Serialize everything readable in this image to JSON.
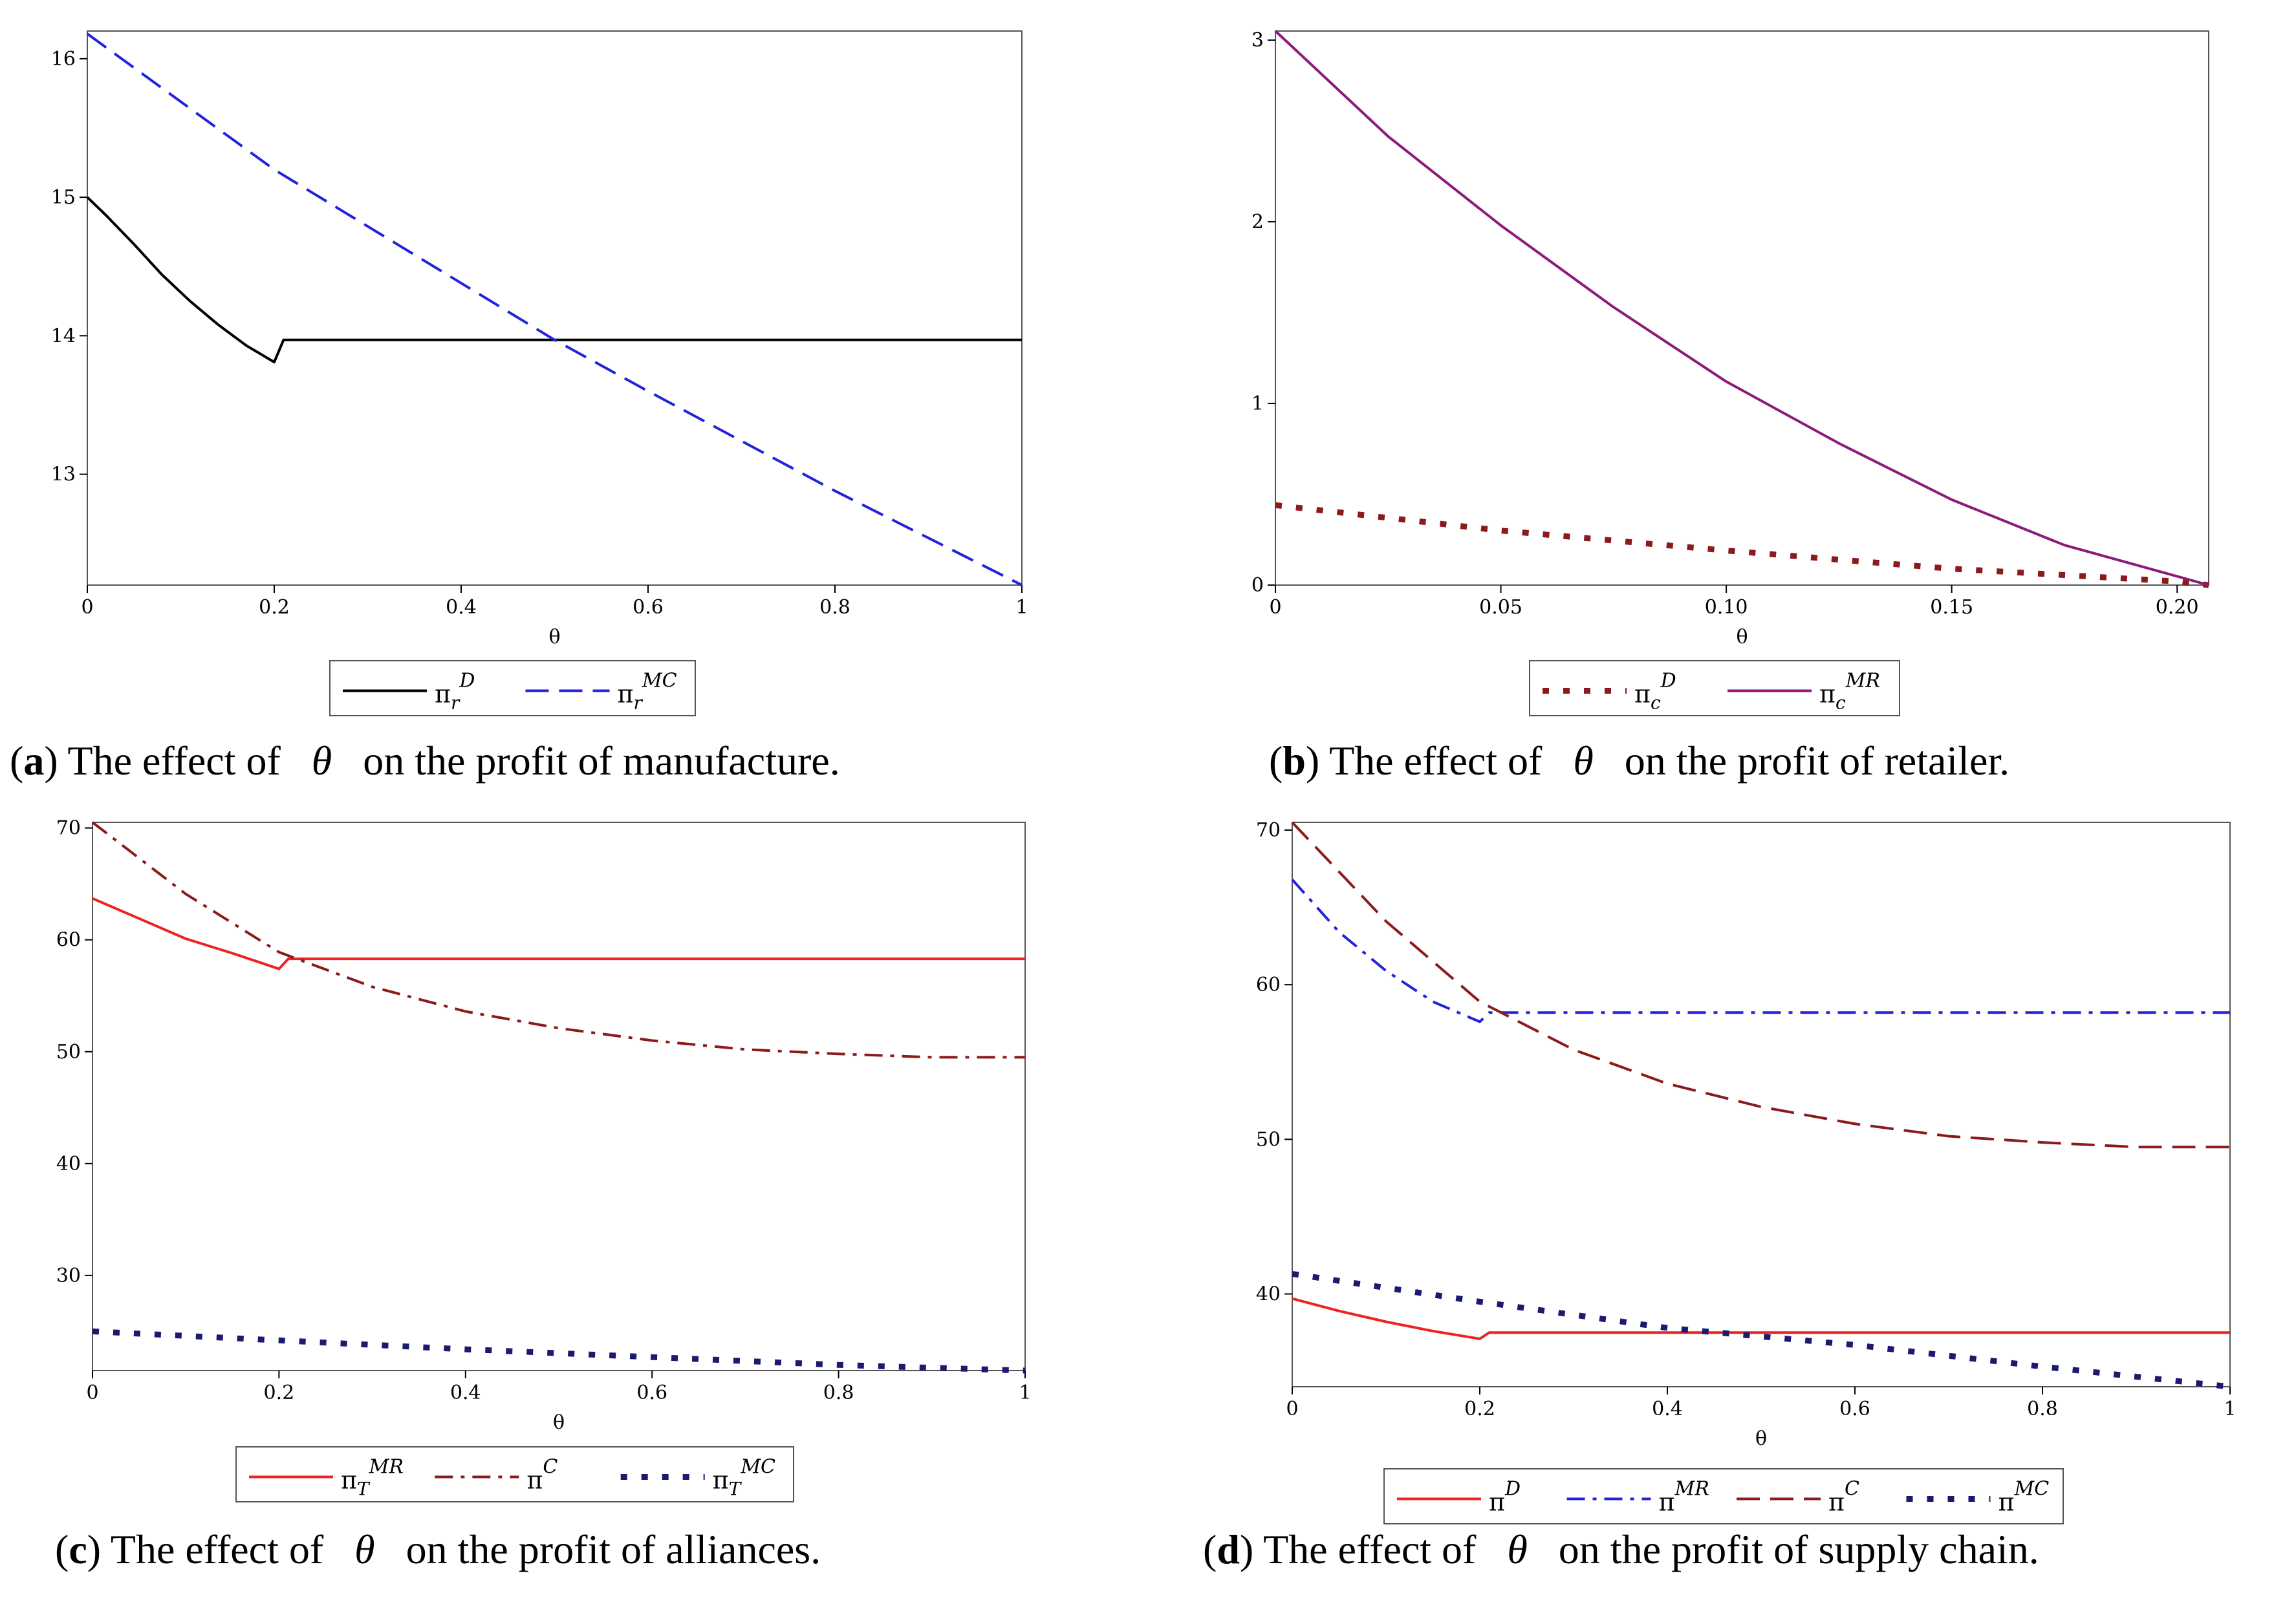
{
  "chart_data": [
    {
      "type": "line",
      "xlabel": "θ",
      "ylabel": "",
      "xlim": [
        0,
        1
      ],
      "ylim": [
        12.2,
        16.2
      ],
      "xticks": [
        0,
        0.2,
        0.4,
        0.6,
        0.8,
        1
      ],
      "xtick_labels": [
        "0",
        "0.2",
        "0.4",
        "0.6",
        "0.8",
        "1"
      ],
      "yticks": [
        13,
        14,
        15,
        16
      ],
      "ytick_labels": [
        "13",
        "14",
        "15",
        "16"
      ],
      "grid": false,
      "legend": "bottom",
      "series": [
        {
          "name": "π_r^D",
          "base": "π",
          "sub": "r",
          "sup": "D",
          "color": "#000000",
          "style": "solid",
          "x": [
            0,
            0.02,
            0.05,
            0.08,
            0.11,
            0.14,
            0.17,
            0.2,
            0.2,
            0.21,
            0.4,
            0.6,
            0.8,
            1
          ],
          "y": [
            15.0,
            14.87,
            14.66,
            14.44,
            14.25,
            14.08,
            13.93,
            13.81,
            13.81,
            13.97,
            13.97,
            13.97,
            13.97,
            13.97
          ]
        },
        {
          "name": "π_r^MC",
          "base": "π",
          "sub": "r",
          "sup": "MC",
          "color": "#2222dd",
          "style": "dashed",
          "x": [
            0,
            0.2,
            0.4,
            0.5,
            0.6,
            0.8,
            1
          ],
          "y": [
            16.18,
            15.2,
            14.38,
            13.97,
            13.6,
            12.88,
            12.2
          ]
        }
      ],
      "caption": {
        "letter": "a",
        "before": "The effect of",
        "symbol": "θ",
        "after": "on the profit of manufacture."
      }
    },
    {
      "type": "line",
      "xlabel": "θ",
      "ylabel": "",
      "xlim": [
        0,
        0.207
      ],
      "ylim": [
        0,
        3.05
      ],
      "xticks": [
        0,
        0.05,
        0.1,
        0.15,
        0.2
      ],
      "xtick_labels": [
        "0",
        "0.05",
        "0.10",
        "0.15",
        "0.20"
      ],
      "yticks": [
        0,
        1,
        2,
        3
      ],
      "ytick_labels": [
        "0",
        "1",
        "2",
        "3"
      ],
      "grid": false,
      "legend": "bottom",
      "series": [
        {
          "name": "π_c^D",
          "base": "π",
          "sub": "c",
          "sup": "D",
          "color": "#8b1a1a",
          "style": "dotted",
          "x": [
            0,
            0.05,
            0.1,
            0.15,
            0.2,
            0.207
          ],
          "y": [
            0.44,
            0.3,
            0.19,
            0.09,
            0.02,
            0.0
          ]
        },
        {
          "name": "π_c^MR",
          "base": "π",
          "sub": "c",
          "sup": "MR",
          "color": "#8b1a7a",
          "style": "solid",
          "x": [
            0,
            0.025,
            0.05,
            0.075,
            0.1,
            0.125,
            0.15,
            0.175,
            0.207
          ],
          "y": [
            3.05,
            2.47,
            1.98,
            1.53,
            1.12,
            0.78,
            0.47,
            0.22,
            0.0
          ]
        }
      ],
      "caption": {
        "letter": "b",
        "before": "The effect of",
        "symbol": "θ",
        "after": "on the profit of retailer."
      }
    },
    {
      "type": "line",
      "xlabel": "θ",
      "ylabel": "",
      "xlim": [
        0,
        1
      ],
      "ylim": [
        21.5,
        70.5
      ],
      "xticks": [
        0,
        0.2,
        0.4,
        0.6,
        0.8,
        1
      ],
      "xtick_labels": [
        "0",
        "0.2",
        "0.4",
        "0.6",
        "0.8",
        "1"
      ],
      "yticks": [
        30,
        40,
        50,
        60,
        70
      ],
      "ytick_labels": [
        "30",
        "40",
        "50",
        "60",
        "70"
      ],
      "grid": false,
      "legend": "bottom",
      "series": [
        {
          "name": "π_T^MR",
          "base": "π",
          "sub": "T",
          "sup": "MR",
          "color": "#ee2222",
          "style": "solid",
          "x": [
            0,
            0.05,
            0.1,
            0.15,
            0.2,
            0.2,
            0.21,
            0.4,
            0.6,
            0.8,
            1
          ],
          "y": [
            63.7,
            61.9,
            60.1,
            58.8,
            57.4,
            57.4,
            58.3,
            58.3,
            58.3,
            58.3,
            58.3
          ]
        },
        {
          "name": "π^C",
          "base": "π",
          "sub": "",
          "sup": "C",
          "color": "#8b1a1a",
          "style": "dashdot",
          "x": [
            0,
            0.1,
            0.2,
            0.3,
            0.4,
            0.5,
            0.6,
            0.7,
            0.8,
            0.9,
            1
          ],
          "y": [
            70.5,
            64.1,
            58.9,
            55.8,
            53.6,
            52.1,
            51.0,
            50.2,
            49.8,
            49.5,
            49.5
          ]
        },
        {
          "name": "π_T^MC",
          "base": "π",
          "sub": "T",
          "sup": "MC",
          "color": "#1a1a6e",
          "style": "dotted",
          "x": [
            0,
            0.2,
            0.4,
            0.6,
            0.8,
            1
          ],
          "y": [
            25.0,
            24.2,
            23.4,
            22.7,
            22.0,
            21.5
          ]
        }
      ],
      "caption": {
        "letter": "c",
        "before": "The effect of",
        "symbol": "θ",
        "after": "on the profit of alliances."
      }
    },
    {
      "type": "line",
      "xlabel": "θ",
      "ylabel": "",
      "xlim": [
        0,
        1
      ],
      "ylim": [
        34,
        70.5
      ],
      "xticks": [
        0,
        0.2,
        0.4,
        0.6,
        0.8,
        1
      ],
      "xtick_labels": [
        "0",
        "0.2",
        "0.4",
        "0.6",
        "0.8",
        "1"
      ],
      "yticks": [
        40,
        50,
        60,
        70
      ],
      "ytick_labels": [
        "40",
        "50",
        "60",
        "70"
      ],
      "grid": false,
      "legend": "bottom",
      "series": [
        {
          "name": "π^D",
          "base": "π",
          "sub": "",
          "sup": "D",
          "color": "#ee2222",
          "style": "solid",
          "x": [
            0,
            0.05,
            0.1,
            0.15,
            0.2,
            0.2,
            0.21,
            0.4,
            0.6,
            0.8,
            1
          ],
          "y": [
            39.7,
            38.9,
            38.2,
            37.6,
            37.1,
            37.1,
            37.5,
            37.5,
            37.5,
            37.5,
            37.5
          ]
        },
        {
          "name": "π^MR",
          "base": "π",
          "sub": "",
          "sup": "MR",
          "color": "#2222dd",
          "style": "dashdot",
          "x": [
            0,
            0.05,
            0.1,
            0.15,
            0.2,
            0.2,
            0.21,
            0.4,
            0.6,
            0.8,
            1
          ],
          "y": [
            66.8,
            63.4,
            60.9,
            58.9,
            57.6,
            57.6,
            58.2,
            58.2,
            58.2,
            58.2,
            58.2
          ]
        },
        {
          "name": "π^C",
          "base": "π",
          "sub": "",
          "sup": "C",
          "color": "#8b1a1a",
          "style": "dashed",
          "x": [
            0,
            0.1,
            0.2,
            0.3,
            0.4,
            0.5,
            0.6,
            0.7,
            0.8,
            0.9,
            1
          ],
          "y": [
            70.5,
            64.1,
            58.9,
            55.8,
            53.6,
            52.1,
            51.0,
            50.2,
            49.8,
            49.5,
            49.5
          ]
        },
        {
          "name": "π^MC",
          "base": "π",
          "sub": "",
          "sup": "MC",
          "color": "#1a1a6e",
          "style": "dotted",
          "x": [
            0,
            0.2,
            0.4,
            0.6,
            0.8,
            1
          ],
          "y": [
            41.3,
            39.5,
            37.8,
            36.7,
            35.3,
            34.0
          ]
        }
      ],
      "caption": {
        "letter": "d",
        "before": "The effect of",
        "symbol": "θ",
        "after": "on the profit of supply chain."
      }
    }
  ]
}
